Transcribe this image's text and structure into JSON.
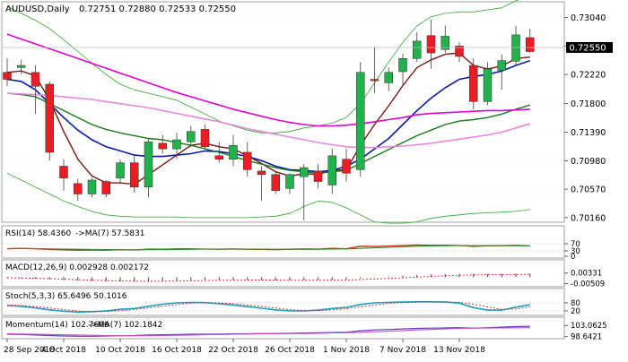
{
  "colors": {
    "bull": "#22b14c",
    "bear": "#ed1c24",
    "ma_blue": "#0a1aa8",
    "ma_magenta": "#e000d0",
    "ma_pink": "#e888e0",
    "ma_darkgreen": "#1a7a1a",
    "ma_darkred": "#7a1a12",
    "ma_blue2": "#1a3ac8",
    "bollinger": "#2eaa2e",
    "grid": "#d8d8d8",
    "axis_text": "#000000",
    "rsi_main": "#c22e00",
    "rsi_ma": "#2e8a2e",
    "macd_hist": "#606060",
    "macd_signal": "#e02020",
    "stoch_k": "#1aa0c0",
    "stoch_d": "#e02020",
    "mom_main": "#6040c0",
    "mom_ma": "#c050c0"
  },
  "chart_data": [
    {
      "type": "candlestick",
      "title": "AUDUSD,Daily",
      "ohlc_text": "0.72751 0.72880 0.72533 0.72550",
      "price_label": "0.72550",
      "yticks": [
        "0.73040",
        "0.72630",
        "0.72220",
        "0.71800",
        "0.71390",
        "0.70980",
        "0.70570",
        "0.70160"
      ],
      "ylim": [
        0.7012,
        0.7324
      ],
      "x_labels": [
        "28 Sep 2018",
        "4 Oct 2018",
        "10 Oct 2018",
        "16 Oct 2018",
        "22 Oct 2018",
        "26 Oct 2018",
        "1 Nov 2018",
        "7 Nov 2018",
        "13 Nov 2018"
      ],
      "x_label_bars": [
        0,
        4,
        8,
        12,
        16,
        20,
        24,
        28,
        32
      ],
      "candles": [
        {
          "o": 0.7225,
          "h": 0.7245,
          "l": 0.7205,
          "c": 0.7215
        },
        {
          "o": 0.7232,
          "h": 0.7243,
          "l": 0.7222,
          "c": 0.7235
        },
        {
          "o": 0.7225,
          "h": 0.7235,
          "l": 0.7165,
          "c": 0.7205
        },
        {
          "o": 0.7208,
          "h": 0.7212,
          "l": 0.7098,
          "c": 0.711
        },
        {
          "o": 0.709,
          "h": 0.71,
          "l": 0.7055,
          "c": 0.7073
        },
        {
          "o": 0.7065,
          "h": 0.7072,
          "l": 0.704,
          "c": 0.705
        },
        {
          "o": 0.705,
          "h": 0.7073,
          "l": 0.7045,
          "c": 0.707
        },
        {
          "o": 0.7068,
          "h": 0.707,
          "l": 0.7045,
          "c": 0.705
        },
        {
          "o": 0.7073,
          "h": 0.71,
          "l": 0.7065,
          "c": 0.7095
        },
        {
          "o": 0.7095,
          "h": 0.7105,
          "l": 0.7052,
          "c": 0.706
        },
        {
          "o": 0.706,
          "h": 0.713,
          "l": 0.7045,
          "c": 0.7125
        },
        {
          "o": 0.7123,
          "h": 0.7135,
          "l": 0.7108,
          "c": 0.7115
        },
        {
          "o": 0.7115,
          "h": 0.7138,
          "l": 0.71,
          "c": 0.7128
        },
        {
          "o": 0.7125,
          "h": 0.7148,
          "l": 0.7118,
          "c": 0.714
        },
        {
          "o": 0.7143,
          "h": 0.715,
          "l": 0.7115,
          "c": 0.7118
        },
        {
          "o": 0.7105,
          "h": 0.7125,
          "l": 0.7095,
          "c": 0.71
        },
        {
          "o": 0.71,
          "h": 0.7135,
          "l": 0.709,
          "c": 0.712
        },
        {
          "o": 0.711,
          "h": 0.7125,
          "l": 0.7075,
          "c": 0.7085
        },
        {
          "o": 0.7083,
          "h": 0.709,
          "l": 0.704,
          "c": 0.7078
        },
        {
          "o": 0.7078,
          "h": 0.7083,
          "l": 0.705,
          "c": 0.7055
        },
        {
          "o": 0.7058,
          "h": 0.708,
          "l": 0.705,
          "c": 0.7078
        },
        {
          "o": 0.7075,
          "h": 0.7093,
          "l": 0.7012,
          "c": 0.7088
        },
        {
          "o": 0.7083,
          "h": 0.7093,
          "l": 0.7058,
          "c": 0.7068
        },
        {
          "o": 0.7063,
          "h": 0.7115,
          "l": 0.705,
          "c": 0.7105
        },
        {
          "o": 0.71,
          "h": 0.7115,
          "l": 0.7068,
          "c": 0.708
        },
        {
          "o": 0.7085,
          "h": 0.724,
          "l": 0.7075,
          "c": 0.7225
        },
        {
          "o": 0.7215,
          "h": 0.7262,
          "l": 0.7195,
          "c": 0.7213
        },
        {
          "o": 0.721,
          "h": 0.7232,
          "l": 0.7198,
          "c": 0.7225
        },
        {
          "o": 0.7226,
          "h": 0.7252,
          "l": 0.7205,
          "c": 0.7245
        },
        {
          "o": 0.7245,
          "h": 0.7283,
          "l": 0.724,
          "c": 0.727
        },
        {
          "o": 0.7278,
          "h": 0.7301,
          "l": 0.723,
          "c": 0.7253
        },
        {
          "o": 0.7258,
          "h": 0.7292,
          "l": 0.7253,
          "c": 0.7277
        },
        {
          "o": 0.7263,
          "h": 0.7268,
          "l": 0.724,
          "c": 0.7248
        },
        {
          "o": 0.7235,
          "h": 0.7245,
          "l": 0.7172,
          "c": 0.7183
        },
        {
          "o": 0.7183,
          "h": 0.724,
          "l": 0.7178,
          "c": 0.723
        },
        {
          "o": 0.7228,
          "h": 0.7251,
          "l": 0.72,
          "c": 0.7242
        },
        {
          "o": 0.7241,
          "h": 0.7292,
          "l": 0.7236,
          "c": 0.7279
        },
        {
          "o": 0.7275,
          "h": 0.7288,
          "l": 0.7253,
          "c": 0.7255
        }
      ],
      "moving_averages": [
        {
          "key": "ma_blue",
          "values": [
            0.7215,
            0.7212,
            0.72,
            0.718,
            0.716,
            0.7142,
            0.7128,
            0.7118,
            0.7112,
            0.7106,
            0.7104,
            0.7104,
            0.7106,
            0.7108,
            0.7112,
            0.7111,
            0.7108,
            0.7104,
            0.7098,
            0.709,
            0.7085,
            0.7084,
            0.7082,
            0.7084,
            0.709,
            0.71,
            0.7115,
            0.713,
            0.715,
            0.717,
            0.7188,
            0.7203,
            0.7215,
            0.7219,
            0.7222,
            0.7227,
            0.7235,
            0.7242
          ]
        },
        {
          "key": "ma_darkred",
          "values": [
            0.7225,
            0.7227,
            0.722,
            0.7185,
            0.714,
            0.71,
            0.7076,
            0.7066,
            0.7066,
            0.7064,
            0.7078,
            0.7092,
            0.7106,
            0.712,
            0.7123,
            0.7118,
            0.7115,
            0.7105,
            0.7094,
            0.7082,
            0.7076,
            0.7079,
            0.7078,
            0.7084,
            0.7085,
            0.712,
            0.715,
            0.7177,
            0.7206,
            0.7232,
            0.7243,
            0.7251,
            0.7253,
            0.7235,
            0.723,
            0.7234,
            0.7245,
            0.7247
          ]
        },
        {
          "key": "ma_darkgreen",
          "values": [
            0.7195,
            0.7193,
            0.719,
            0.718,
            0.717,
            0.716,
            0.715,
            0.7143,
            0.7138,
            0.7134,
            0.713,
            0.7128,
            0.7124,
            0.712,
            0.7115,
            0.711,
            0.7104,
            0.7098,
            0.7093,
            0.7088,
            0.7084,
            0.7082,
            0.708,
            0.7082,
            0.7084,
            0.7094,
            0.7104,
            0.7114,
            0.7124,
            0.7134,
            0.7142,
            0.715,
            0.7155,
            0.7157,
            0.716,
            0.7165,
            0.7172,
            0.7178
          ]
        },
        {
          "key": "ma_magenta",
          "values": [
            0.728,
            0.7273,
            0.7266,
            0.7259,
            0.7252,
            0.7245,
            0.7238,
            0.7231,
            0.7224,
            0.7217,
            0.721,
            0.7203,
            0.7196,
            0.719,
            0.7184,
            0.7178,
            0.7172,
            0.7167,
            0.7162,
            0.7157,
            0.7153,
            0.715,
            0.7148,
            0.7148,
            0.7149,
            0.7151,
            0.7154,
            0.7157,
            0.716,
            0.7164,
            0.7166,
            0.7167,
            0.7168,
            0.7169,
            0.717,
            0.717,
            0.7171,
            0.7172
          ]
        },
        {
          "key": "ma_pink",
          "values": [
            0.7195,
            0.7194,
            0.7193,
            0.7192,
            0.719,
            0.7188,
            0.7186,
            0.7183,
            0.718,
            0.7177,
            0.7174,
            0.717,
            0.7166,
            0.7162,
            0.7158,
            0.7154,
            0.7149,
            0.7144,
            0.714,
            0.7136,
            0.7132,
            0.7128,
            0.7124,
            0.7121,
            0.7118,
            0.7117,
            0.7117,
            0.7118,
            0.7119,
            0.7121,
            0.7123,
            0.7126,
            0.7129,
            0.7132,
            0.7135,
            0.7139,
            0.7145,
            0.7151
          ]
        }
      ],
      "bollinger": {
        "upper": [
          0.732,
          0.731,
          0.73,
          0.7288,
          0.7272,
          0.7255,
          0.7238,
          0.7222,
          0.7208,
          0.72,
          0.7195,
          0.719,
          0.7185,
          0.7175,
          0.7165,
          0.7155,
          0.7148,
          0.7142,
          0.7138,
          0.7138,
          0.714,
          0.7145,
          0.7148,
          0.7152,
          0.716,
          0.718,
          0.721,
          0.724,
          0.7268,
          0.7292,
          0.7305,
          0.731,
          0.7312,
          0.7312,
          0.7315,
          0.7318,
          0.7328,
          0.7335
        ],
        "lower": [
          0.708,
          0.707,
          0.706,
          0.705,
          0.704,
          0.7032,
          0.7025,
          0.702,
          0.7018,
          0.7017,
          0.7017,
          0.7017,
          0.7017,
          0.7016,
          0.7016,
          0.7016,
          0.7016,
          0.7016,
          0.7017,
          0.7018,
          0.7022,
          0.7032,
          0.704,
          0.7038,
          0.703,
          0.702,
          0.701,
          0.7008,
          0.7008,
          0.701,
          0.7015,
          0.7018,
          0.702,
          0.7022,
          0.7023,
          0.7024,
          0.7025,
          0.7028
        ]
      }
    },
    {
      "type": "line",
      "label": "RSI(14) 58.4360",
      "ma_label": "->MA(7) 57.5831",
      "yticks": [
        "70",
        "30",
        "0"
      ],
      "ylim": [
        0,
        100
      ],
      "series": [
        {
          "key": "rsi_main",
          "values": [
            42,
            44,
            42,
            38,
            36,
            34,
            35,
            34,
            37,
            35,
            40,
            39,
            41,
            42,
            40,
            39,
            41,
            39,
            38,
            37,
            39,
            41,
            40,
            44,
            42,
            56,
            55,
            57,
            60,
            63,
            61,
            62,
            60,
            55,
            58,
            59,
            61,
            58
          ]
        },
        {
          "key": "rsi_ma",
          "values": [
            43,
            43,
            43,
            41,
            40,
            39,
            38,
            37,
            36,
            36,
            37,
            37,
            38,
            39,
            40,
            40,
            40,
            40,
            40,
            39,
            39,
            39,
            39,
            40,
            41,
            44,
            47,
            50,
            53,
            56,
            58,
            59,
            60,
            59,
            59,
            59,
            59,
            58
          ]
        }
      ]
    },
    {
      "type": "bar",
      "label": "MACD(12,26,9) 0.002928 0.002172",
      "yticks": [
        "0.00331",
        "-0.00509"
      ],
      "ylim": [
        -0.0062,
        0.0045
      ],
      "histogram": [
        -0.0009,
        -0.001,
        -0.0013,
        -0.0018,
        -0.0024,
        -0.0029,
        -0.0032,
        -0.0034,
        -0.0035,
        -0.0035,
        -0.0033,
        -0.003,
        -0.0027,
        -0.0024,
        -0.0022,
        -0.0021,
        -0.0021,
        -0.0022,
        -0.0023,
        -0.0025,
        -0.0025,
        -0.0024,
        -0.0023,
        -0.0021,
        -0.002,
        -0.001,
        -0.0002,
        0.0006,
        0.0013,
        0.0019,
        0.0022,
        0.0025,
        0.0027,
        0.0026,
        0.0025,
        0.0026,
        0.0028,
        0.0029
      ],
      "signal": [
        -0.0005,
        -0.0007,
        -0.0009,
        -0.0012,
        -0.0016,
        -0.002,
        -0.0024,
        -0.0027,
        -0.003,
        -0.0032,
        -0.0033,
        -0.0032,
        -0.0031,
        -0.0029,
        -0.0027,
        -0.0025,
        -0.0024,
        -0.0023,
        -0.0023,
        -0.0023,
        -0.0024,
        -0.0024,
        -0.0024,
        -0.0023,
        -0.0022,
        -0.0019,
        -0.0015,
        -0.001,
        -0.0005,
        0.0,
        0.0006,
        0.0011,
        0.0015,
        0.0018,
        0.002,
        0.0021,
        0.0021,
        0.0022
      ]
    },
    {
      "type": "line",
      "label": "Stoch(5,3,3) 65.6496 50.1016",
      "yticks": [
        "80",
        "20"
      ],
      "ylim": [
        0,
        100
      ],
      "series": [
        {
          "key": "stoch_k",
          "values": [
            60,
            55,
            42,
            28,
            18,
            12,
            15,
            20,
            32,
            38,
            55,
            70,
            80,
            84,
            82,
            74,
            64,
            52,
            40,
            28,
            20,
            20,
            26,
            38,
            46,
            68,
            80,
            84,
            86,
            88,
            88,
            86,
            78,
            45,
            26,
            26,
            48,
            66
          ]
        },
        {
          "key": "stoch_d",
          "values": [
            65,
            60,
            52,
            42,
            30,
            20,
            15,
            16,
            22,
            30,
            42,
            54,
            68,
            78,
            82,
            80,
            74,
            64,
            54,
            42,
            30,
            24,
            22,
            28,
            36,
            50,
            64,
            76,
            82,
            86,
            87,
            87,
            84,
            70,
            50,
            32,
            34,
            50
          ]
        }
      ]
    },
    {
      "type": "line",
      "label": "Momentum(14) 102.7606",
      "ma_label": "->MA(7) 102.1842",
      "yticks": [
        "103.0625",
        "98.6421"
      ],
      "ylim": [
        98.2,
        103.5
      ],
      "series": [
        {
          "key": "mom_main",
          "values": [
            99.6,
            99.5,
            99.3,
            99.1,
            98.9,
            98.8,
            98.8,
            98.9,
            99.0,
            99.1,
            99.3,
            99.4,
            99.5,
            99.6,
            99.6,
            99.7,
            99.8,
            99.8,
            99.9,
            99.9,
            100.0,
            100.1,
            100.2,
            100.3,
            100.4,
            101.0,
            101.3,
            101.5,
            101.7,
            101.9,
            102.0,
            102.1,
            102.2,
            102.0,
            102.2,
            102.4,
            102.6,
            102.76
          ]
        },
        {
          "key": "mom_ma",
          "values": [
            99.8,
            99.7,
            99.6,
            99.5,
            99.4,
            99.3,
            99.2,
            99.1,
            99.0,
            99.0,
            99.0,
            99.1,
            99.2,
            99.3,
            99.4,
            99.5,
            99.6,
            99.7,
            99.8,
            99.8,
            99.9,
            99.9,
            100.0,
            100.1,
            100.2,
            100.4,
            100.6,
            100.8,
            101.0,
            101.3,
            101.5,
            101.7,
            101.9,
            102.0,
            102.05,
            102.1,
            102.15,
            102.18
          ]
        }
      ]
    }
  ]
}
